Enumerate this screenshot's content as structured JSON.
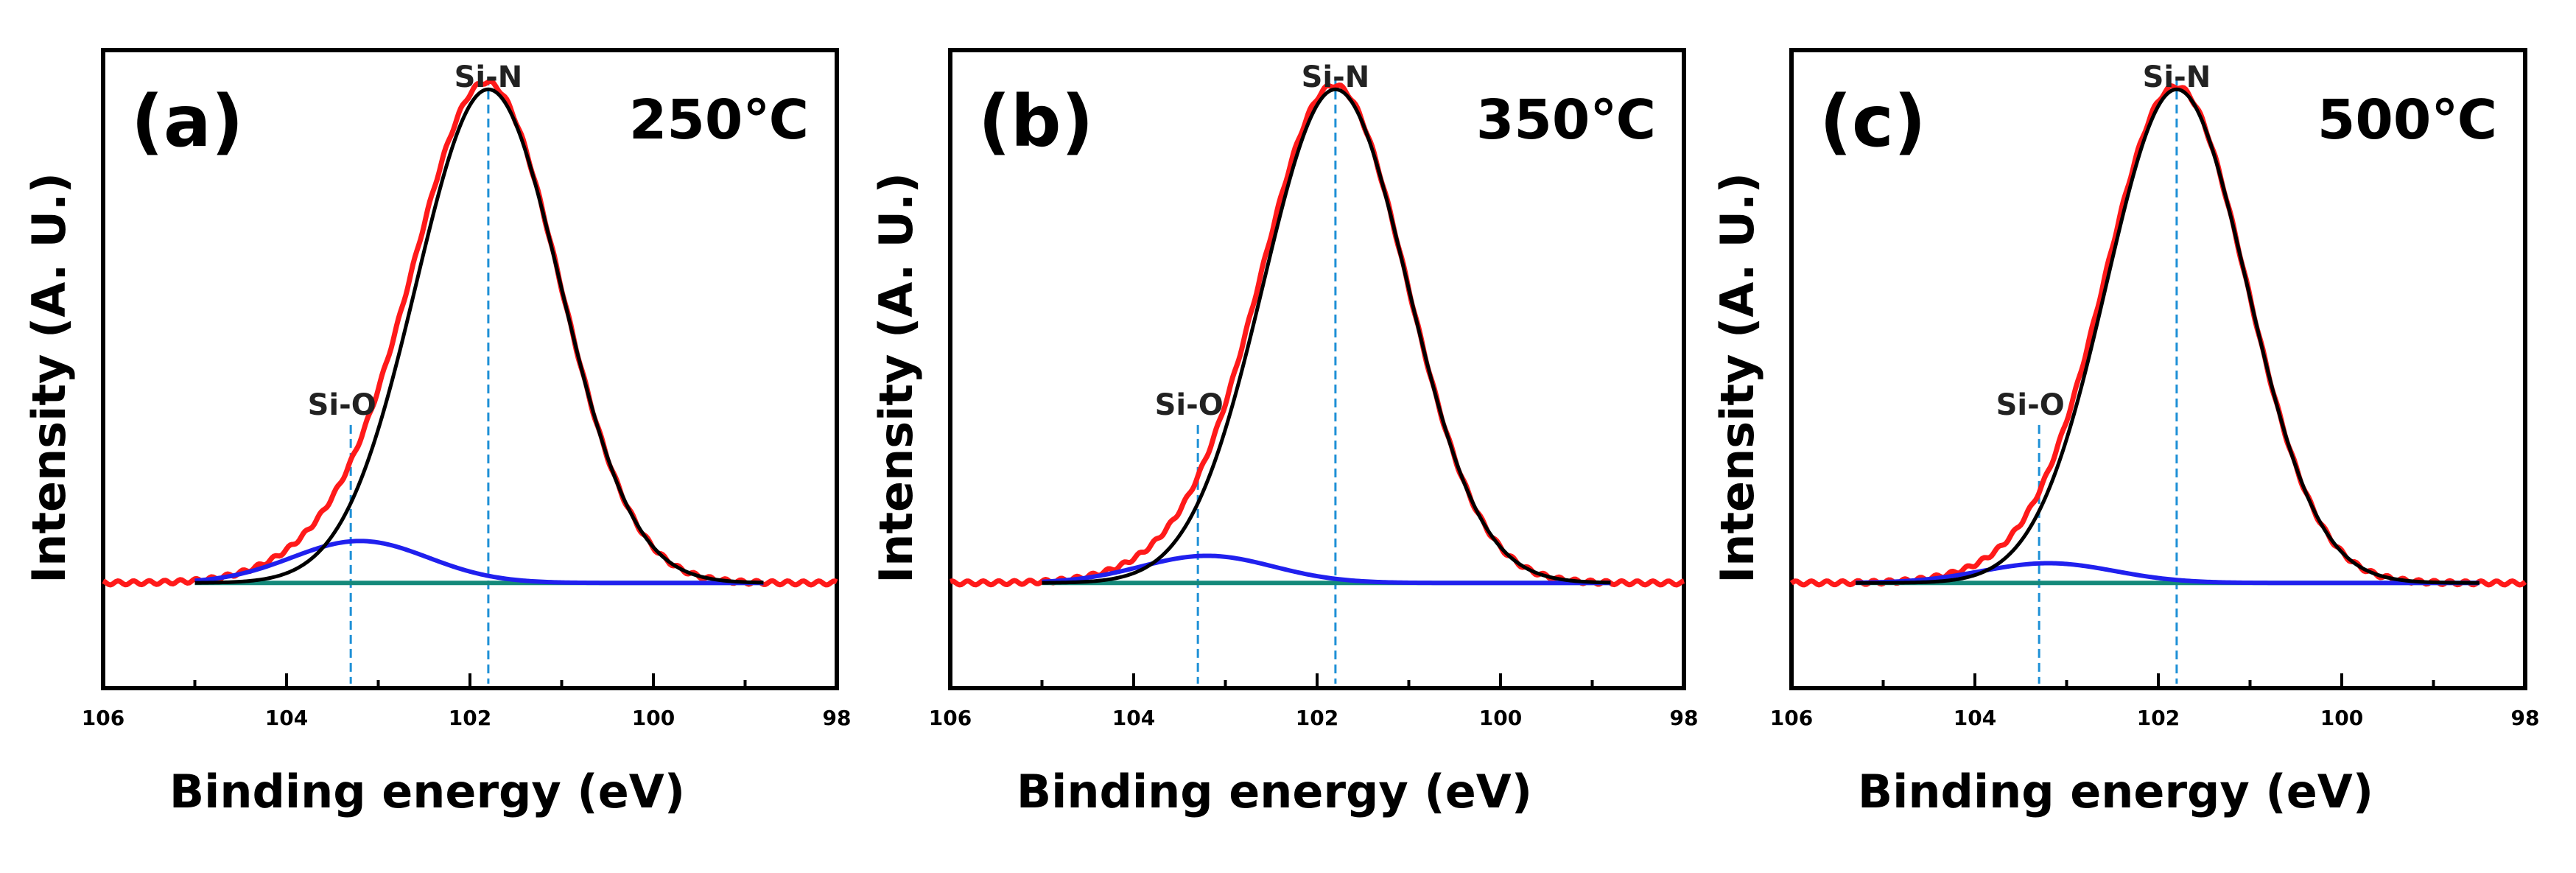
{
  "colors": {
    "envelope": "#ff1a1a",
    "si_n_fit": "#000000",
    "si_o_fit": "#2020ee",
    "background": "#14897a",
    "marker_line": "#1e90d6",
    "frame": "#000000"
  },
  "chart_data": [
    {
      "type": "line",
      "panel_label": "(a)",
      "temperature": "250℃",
      "xlabel": "Binding energy (eV)",
      "ylabel": "Intensity (A. U.)",
      "xlim": [
        106,
        98
      ],
      "x_reversed": true,
      "xticks": [
        106,
        104,
        102,
        100,
        98
      ],
      "xtick_labels": [
        "106",
        "104",
        "102",
        "100",
        "98"
      ],
      "ylim": [
        0,
        1.0
      ],
      "yticks_shown": false,
      "fit_range": [
        105.0,
        98.8
      ],
      "data_range": [
        106,
        98
      ],
      "annotations": [
        {
          "text": "Si-N",
          "x": 101.8,
          "marker_top": 1.0
        },
        {
          "text": "Si-O",
          "x": 103.3,
          "marker_top": 0.33
        }
      ],
      "series": [
        {
          "name": "Si-N",
          "center": 101.8,
          "height": 1.0,
          "fwhm": 1.85,
          "color": "black"
        },
        {
          "name": "Si-O",
          "center": 103.2,
          "height": 0.085,
          "fwhm": 1.75,
          "color": "blue"
        },
        {
          "name": "Background",
          "baseline": 0.01,
          "color": "teal"
        },
        {
          "name": "Envelope",
          "color": "red"
        }
      ]
    },
    {
      "type": "line",
      "panel_label": "(b)",
      "temperature": "350℃",
      "xlabel": "Binding energy (eV)",
      "ylabel": "Intensity (A. U.)",
      "xlim": [
        106,
        98
      ],
      "x_reversed": true,
      "xticks": [
        106,
        104,
        102,
        100,
        98
      ],
      "xtick_labels": [
        "106",
        "104",
        "102",
        "100",
        "98"
      ],
      "ylim": [
        0,
        1.0
      ],
      "yticks_shown": false,
      "fit_range": [
        105.0,
        98.8
      ],
      "data_range": [
        106,
        98
      ],
      "annotations": [
        {
          "text": "Si-N",
          "x": 101.8,
          "marker_top": 1.0
        },
        {
          "text": "Si-O",
          "x": 103.3,
          "marker_top": 0.33
        }
      ],
      "series": [
        {
          "name": "Si-N",
          "center": 101.8,
          "height": 1.0,
          "fwhm": 1.85,
          "color": "black"
        },
        {
          "name": "Si-O",
          "center": 103.2,
          "height": 0.055,
          "fwhm": 1.7,
          "color": "blue"
        },
        {
          "name": "Background",
          "baseline": 0.01,
          "color": "teal"
        },
        {
          "name": "Envelope",
          "color": "red"
        }
      ]
    },
    {
      "type": "line",
      "panel_label": "(c)",
      "temperature": "500℃",
      "xlabel": "Binding energy (eV)",
      "ylabel": "Intensity (A. U.)",
      "xlim": [
        106,
        98
      ],
      "x_reversed": true,
      "xticks": [
        106,
        104,
        102,
        100,
        98
      ],
      "xtick_labels": [
        "106",
        "104",
        "102",
        "100",
        "98"
      ],
      "ylim": [
        0,
        1.0
      ],
      "yticks_shown": false,
      "fit_range": [
        105.3,
        98.5
      ],
      "data_range": [
        106,
        98
      ],
      "annotations": [
        {
          "text": "Si-N",
          "x": 101.8,
          "marker_top": 1.0
        },
        {
          "text": "Si-O",
          "x": 103.3,
          "marker_top": 0.33
        }
      ],
      "series": [
        {
          "name": "Si-N",
          "center": 101.8,
          "height": 1.0,
          "fwhm": 1.8,
          "color": "black"
        },
        {
          "name": "Si-O",
          "center": 103.2,
          "height": 0.04,
          "fwhm": 1.7,
          "color": "blue"
        },
        {
          "name": "Background",
          "baseline": 0.01,
          "color": "teal"
        },
        {
          "name": "Envelope",
          "color": "red"
        }
      ]
    }
  ]
}
